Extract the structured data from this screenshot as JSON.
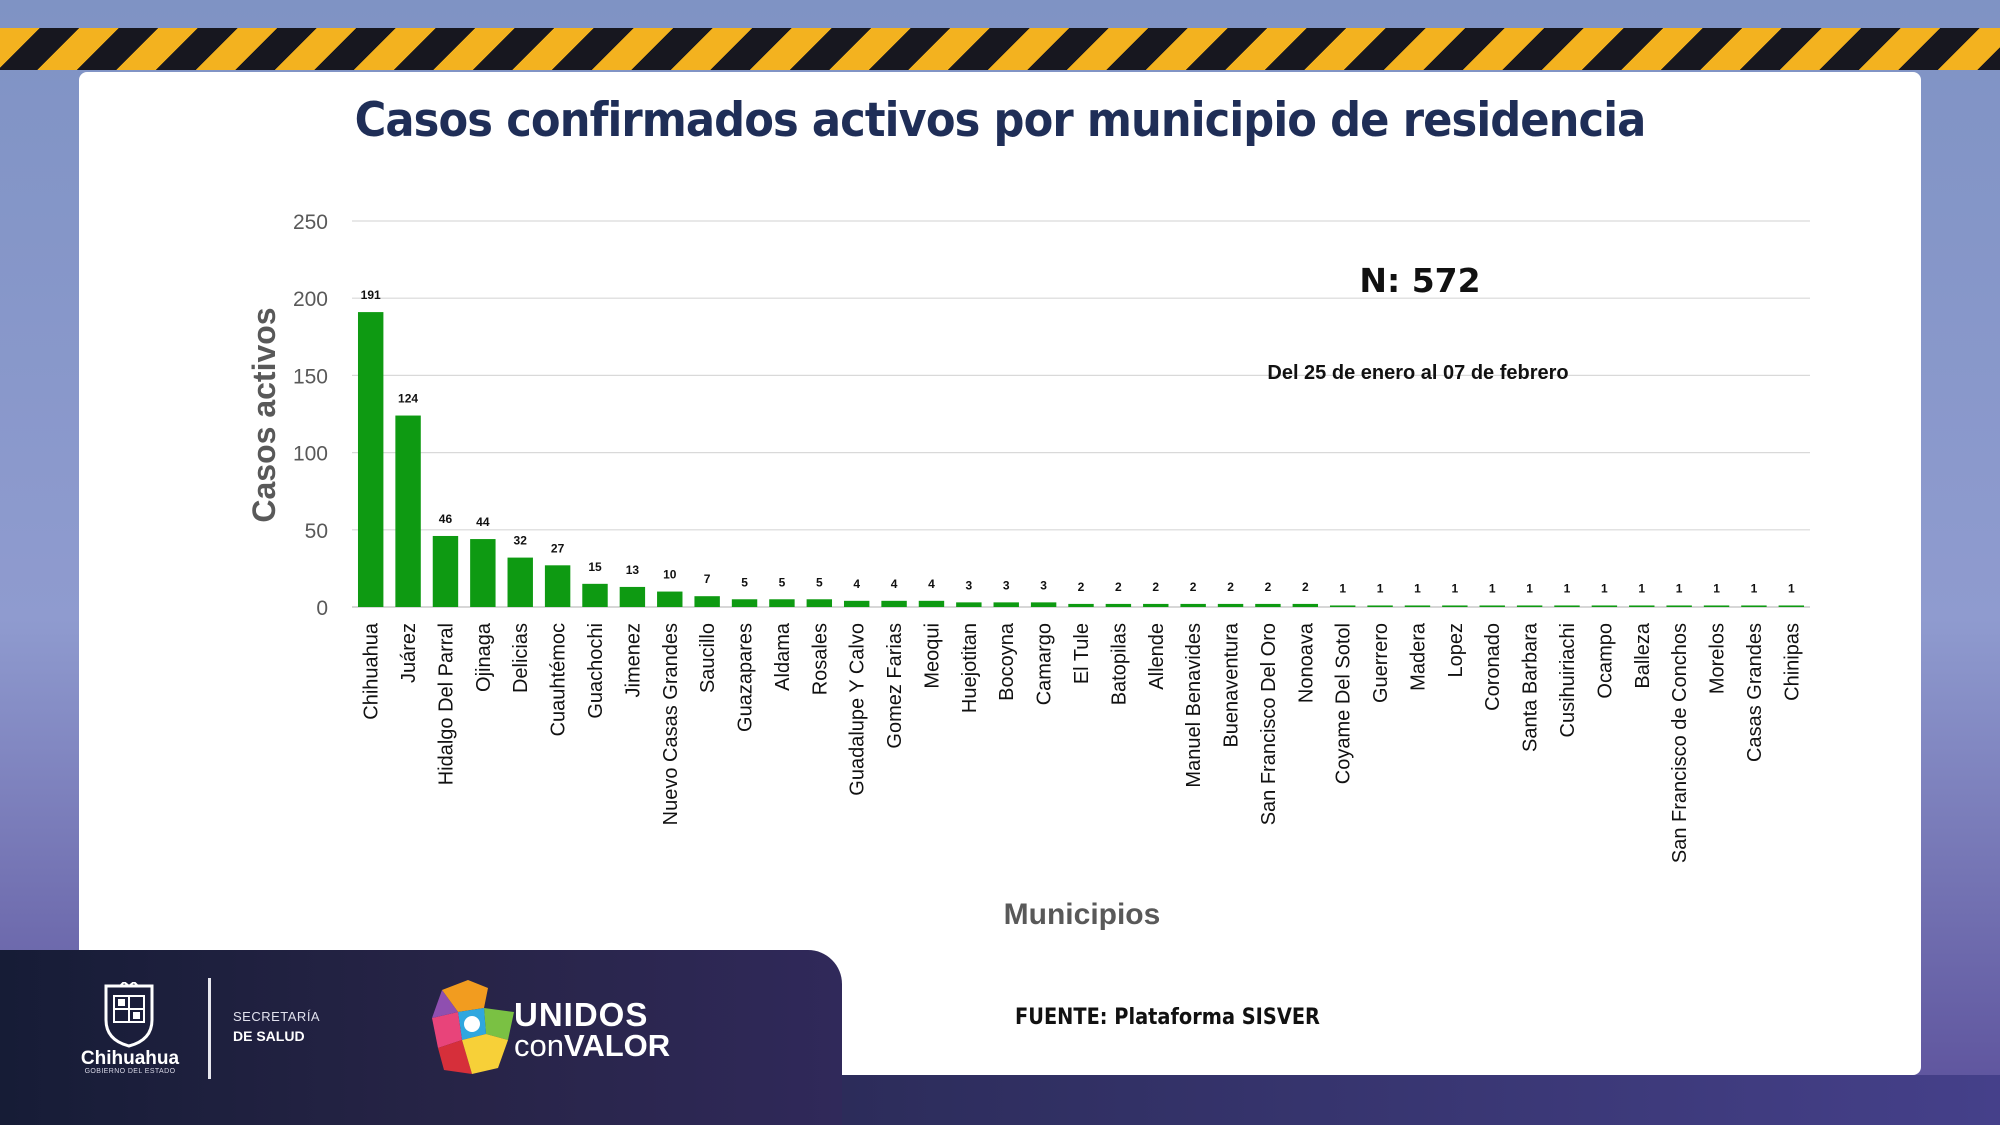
{
  "title": "Casos confirmados activos por municipio de residencia",
  "chart_data": {
    "type": "bar",
    "title": "Casos confirmados activos por municipio de residencia",
    "xlabel": "Municipios",
    "ylabel": "Casos activos",
    "ylim": [
      0,
      250
    ],
    "yticks": [
      0,
      50,
      100,
      150,
      200,
      250
    ],
    "grid": true,
    "bar_color": "#0e9a12",
    "categories": [
      "Chihuahua",
      "Juárez",
      "Hidalgo Del Parral",
      "Ojinaga",
      "Delicias",
      "Cuauhtémoc",
      "Guachochi",
      "Jimenez",
      "Nuevo Casas Grandes",
      "Saucillo",
      "Guazapares",
      "Aldama",
      "Rosales",
      "Guadalupe Y Calvo",
      "Gomez Farias",
      "Meoqui",
      "Huejotitan",
      "Bocoyna",
      "Camargo",
      "El Tule",
      "Batopilas",
      "Allende",
      "Manuel Benavides",
      "Buenaventura",
      "San Francisco Del Oro",
      "Nonoava",
      "Coyame Del Sotol",
      "Guerrero",
      "Madera",
      "Lopez",
      "Coronado",
      "Santa Barbara",
      "Cusihuiriachi",
      "Ocampo",
      "Balleza",
      "San Francisco de Conchos",
      "Morelos",
      "Casas Grandes",
      "Chinipas"
    ],
    "values": [
      191,
      124,
      46,
      44,
      32,
      27,
      15,
      13,
      10,
      7,
      5,
      5,
      5,
      4,
      4,
      4,
      3,
      3,
      3,
      2,
      2,
      2,
      2,
      2,
      2,
      2,
      1,
      1,
      1,
      1,
      1,
      1,
      1,
      1,
      1,
      1,
      1,
      1,
      1
    ],
    "annotations": {
      "total": "N: 572",
      "period": "Del 25 de enero al 07 de febrero"
    }
  },
  "footer": {
    "gov_name": "Chihuahua",
    "gov_sub": "GOBIERNO DEL ESTADO",
    "secretaria": "SECRETARÍA",
    "de_salud": "DE SALUD",
    "unidos": "UNIDOS",
    "con": "con",
    "valor": "VALOR",
    "fuente": "FUENTE: Plataforma SISVER"
  },
  "colors": {
    "title": "#1f2e57",
    "bars": "#0e9a12",
    "footer_bg": "#1f2140",
    "hazard_yellow": "#f3b21f"
  }
}
